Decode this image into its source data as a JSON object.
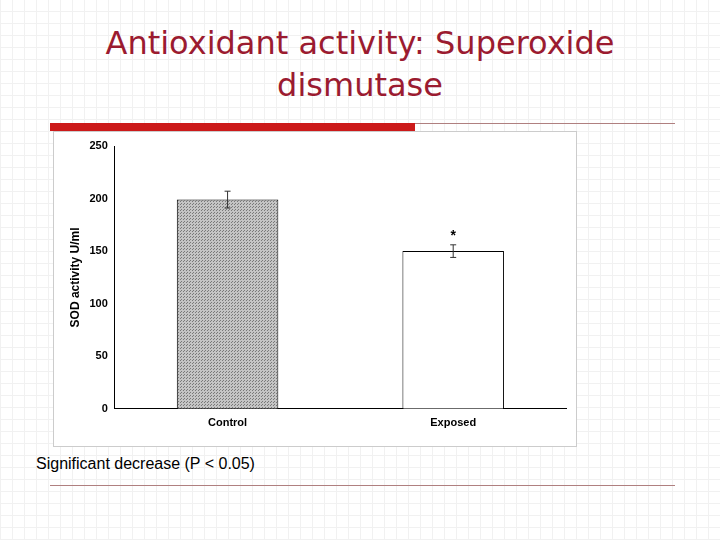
{
  "chart_data": {
    "type": "bar",
    "title": "Antioxidant activity: Superoxide dismutase",
    "categories": [
      "Control",
      "Exposed"
    ],
    "values": [
      199,
      150
    ],
    "errors": [
      8,
      6
    ],
    "colors": [
      "#c4c4c4",
      "#ffffff"
    ],
    "y_label": "SOD activity U/ml",
    "ylim": [
      0,
      250
    ],
    "yticks": [
      0,
      50,
      100,
      150,
      200,
      250
    ],
    "grid": false,
    "annotations": [
      {
        "category": "Exposed",
        "text": "*"
      }
    ],
    "caption": "Significant decrease (P < 0.05)"
  }
}
